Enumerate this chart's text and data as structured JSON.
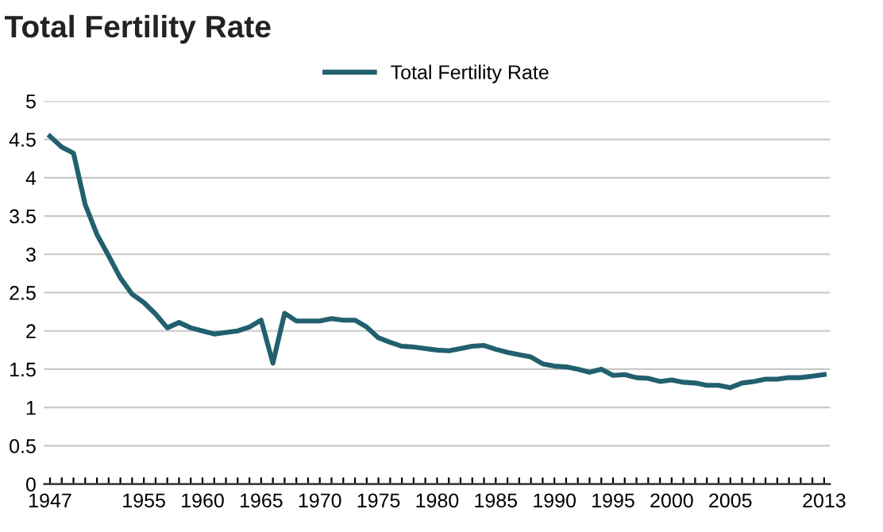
{
  "chart_data": {
    "type": "line",
    "title": "Total Fertility Rate",
    "x": [
      1947,
      1948,
      1949,
      1950,
      1951,
      1952,
      1953,
      1954,
      1955,
      1956,
      1957,
      1958,
      1959,
      1960,
      1961,
      1962,
      1963,
      1964,
      1965,
      1966,
      1967,
      1968,
      1969,
      1970,
      1971,
      1972,
      1973,
      1974,
      1975,
      1976,
      1977,
      1978,
      1979,
      1980,
      1981,
      1982,
      1983,
      1984,
      1985,
      1986,
      1987,
      1988,
      1989,
      1990,
      1991,
      1992,
      1993,
      1994,
      1995,
      1996,
      1997,
      1998,
      1999,
      2000,
      2001,
      2002,
      2003,
      2004,
      2005,
      2006,
      2007,
      2008,
      2009,
      2010,
      2011,
      2012,
      2013
    ],
    "series": [
      {
        "name": "Total Fertility Rate",
        "color": "#22606e",
        "values": [
          4.54,
          4.4,
          4.32,
          3.65,
          3.26,
          2.98,
          2.69,
          2.48,
          2.37,
          2.22,
          2.04,
          2.11,
          2.04,
          2.0,
          1.96,
          1.98,
          2.0,
          2.05,
          2.14,
          1.58,
          2.23,
          2.13,
          2.13,
          2.13,
          2.16,
          2.14,
          2.14,
          2.05,
          1.91,
          1.85,
          1.8,
          1.79,
          1.77,
          1.75,
          1.74,
          1.77,
          1.8,
          1.81,
          1.76,
          1.72,
          1.69,
          1.66,
          1.57,
          1.54,
          1.53,
          1.5,
          1.46,
          1.5,
          1.42,
          1.43,
          1.39,
          1.38,
          1.34,
          1.36,
          1.33,
          1.32,
          1.29,
          1.29,
          1.26,
          1.32,
          1.34,
          1.37,
          1.37,
          1.39,
          1.39,
          1.41,
          1.43
        ]
      }
    ],
    "xlim": [
      1946.5,
      2013.5
    ],
    "xticks": [
      1947,
      {
        "value": 1948,
        "label": null
      },
      {
        "value": 1949,
        "label": null
      },
      {
        "value": 1950,
        "label": null
      },
      {
        "value": 1951,
        "label": null
      },
      {
        "value": 1952,
        "label": null
      },
      {
        "value": 1953,
        "label": null
      },
      {
        "value": 1954,
        "label": null
      },
      1955,
      {
        "value": 1956,
        "label": null
      },
      {
        "value": 1957,
        "label": null
      },
      {
        "value": 1958,
        "label": null
      },
      {
        "value": 1959,
        "label": null
      },
      1960,
      {
        "value": 1961,
        "label": null
      },
      {
        "value": 1962,
        "label": null
      },
      {
        "value": 1963,
        "label": null
      },
      {
        "value": 1964,
        "label": null
      },
      1965,
      {
        "value": 1966,
        "label": null
      },
      {
        "value": 1967,
        "label": null
      },
      {
        "value": 1968,
        "label": null
      },
      {
        "value": 1969,
        "label": null
      },
      1970,
      {
        "value": 1971,
        "label": null
      },
      {
        "value": 1972,
        "label": null
      },
      {
        "value": 1973,
        "label": null
      },
      {
        "value": 1974,
        "label": null
      },
      1975,
      {
        "value": 1976,
        "label": null
      },
      {
        "value": 1977,
        "label": null
      },
      {
        "value": 1978,
        "label": null
      },
      {
        "value": 1979,
        "label": null
      },
      1980,
      {
        "value": 1981,
        "label": null
      },
      {
        "value": 1982,
        "label": null
      },
      {
        "value": 1983,
        "label": null
      },
      {
        "value": 1984,
        "label": null
      },
      1985,
      {
        "value": 1986,
        "label": null
      },
      {
        "value": 1987,
        "label": null
      },
      {
        "value": 1988,
        "label": null
      },
      {
        "value": 1989,
        "label": null
      },
      1990,
      {
        "value": 1991,
        "label": null
      },
      {
        "value": 1992,
        "label": null
      },
      {
        "value": 1993,
        "label": null
      },
      {
        "value": 1994,
        "label": null
      },
      1995,
      {
        "value": 1996,
        "label": null
      },
      {
        "value": 1997,
        "label": null
      },
      {
        "value": 1998,
        "label": null
      },
      {
        "value": 1999,
        "label": null
      },
      2000,
      {
        "value": 2001,
        "label": null
      },
      {
        "value": 2002,
        "label": null
      },
      {
        "value": 2003,
        "label": null
      },
      {
        "value": 2004,
        "label": null
      },
      2005,
      {
        "value": 2006,
        "label": null
      },
      {
        "value": 2007,
        "label": null
      },
      {
        "value": 2008,
        "label": null
      },
      {
        "value": 2009,
        "label": null
      },
      {
        "value": 2010,
        "label": null
      },
      {
        "value": 2011,
        "label": null
      },
      {
        "value": 2012,
        "label": null
      },
      2013
    ],
    "ylim": [
      0,
      5
    ],
    "yticks": [
      0,
      0.5,
      1,
      1.5,
      2,
      2.5,
      3,
      3.5,
      4,
      4.5,
      5
    ],
    "grid": "y",
    "legend": "top",
    "marker": "none",
    "line_style": "solid"
  }
}
